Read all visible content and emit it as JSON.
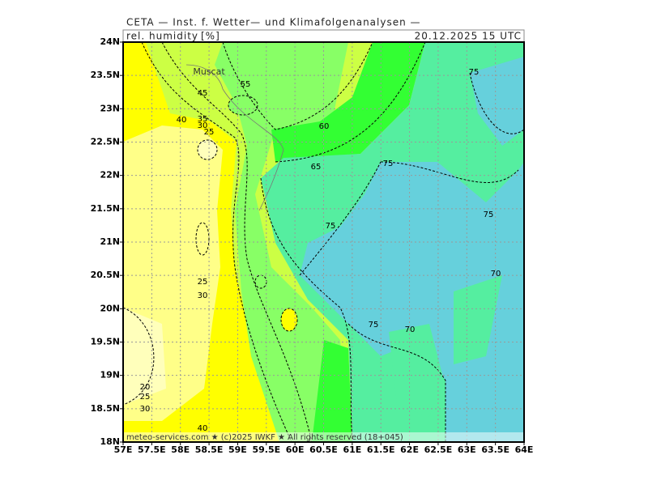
{
  "header": {
    "title": "CETA — Inst. f. Wetter— und Klimafolgenanalysen —",
    "variable": "rel. humidity",
    "unit": "[%]",
    "valid": "20.12.2025  15 UTC"
  },
  "map": {
    "city": "Muscat",
    "x_ticks": [
      "57E",
      "57.5E",
      "58E",
      "58.5E",
      "59E",
      "59.5E",
      "60E",
      "60.5E",
      "61E",
      "61.5E",
      "62E",
      "62.5E",
      "63E",
      "63.5E",
      "64E"
    ],
    "y_ticks": [
      "24N",
      "23.5N",
      "23N",
      "22.5N",
      "22N",
      "21.5N",
      "21N",
      "20.5N",
      "20N",
      "19.5N",
      "19N",
      "18.5N",
      "18N"
    ],
    "contour_labels": [
      "55",
      "45",
      "40",
      "35",
      "30",
      "25",
      "60",
      "65",
      "75",
      "75",
      "75",
      "75",
      "25",
      "30",
      "75",
      "70",
      "70",
      "20",
      "25",
      "30",
      "40"
    ]
  },
  "footer": "meteo-services.com ★ (c)2025 IWKF ★ All rights reserved (18+045)"
}
